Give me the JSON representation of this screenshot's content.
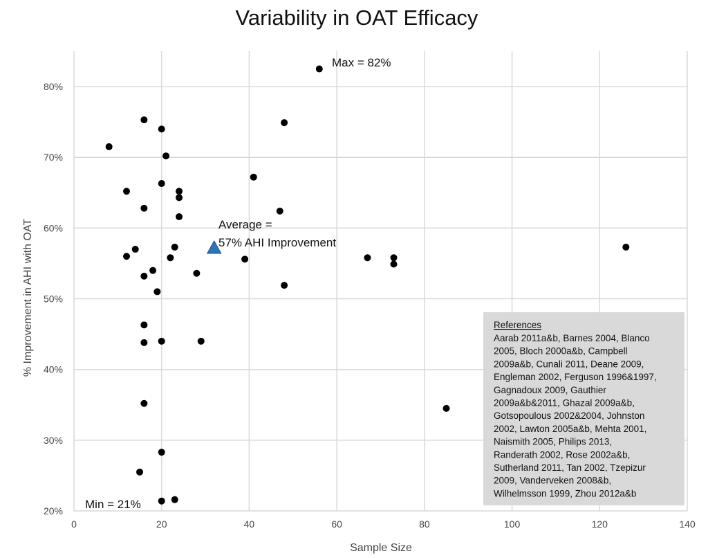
{
  "chart_data": {
    "type": "scatter",
    "title": "Variability in OAT Efficacy",
    "xlabel": "Sample Size",
    "ylabel": "% Improvement in AHI with OAT",
    "xlim": [
      0,
      140
    ],
    "ylim": [
      20,
      85
    ],
    "x_ticks": [
      0,
      20,
      40,
      60,
      80,
      100,
      120,
      140
    ],
    "y_ticks": [
      20,
      30,
      40,
      50,
      60,
      70,
      80
    ],
    "y_tick_suffix": "%",
    "grid": true,
    "colors": {
      "points": "#000000",
      "average": "#2E75B6",
      "reference_box": "#D9D9D9"
    },
    "points": [
      {
        "x": 8,
        "y": 71.5
      },
      {
        "x": 12,
        "y": 65.2
      },
      {
        "x": 12,
        "y": 56.0
      },
      {
        "x": 14,
        "y": 57.0
      },
      {
        "x": 15,
        "y": 25.5
      },
      {
        "x": 16,
        "y": 75.3
      },
      {
        "x": 16,
        "y": 62.8
      },
      {
        "x": 16,
        "y": 53.2
      },
      {
        "x": 16,
        "y": 46.3
      },
      {
        "x": 16,
        "y": 43.8
      },
      {
        "x": 16,
        "y": 35.2
      },
      {
        "x": 18,
        "y": 54.0
      },
      {
        "x": 19,
        "y": 51.0
      },
      {
        "x": 20,
        "y": 74.0
      },
      {
        "x": 20,
        "y": 66.3
      },
      {
        "x": 20,
        "y": 44.0
      },
      {
        "x": 20,
        "y": 28.3
      },
      {
        "x": 20,
        "y": 21.4
      },
      {
        "x": 21,
        "y": 70.2
      },
      {
        "x": 22,
        "y": 55.8
      },
      {
        "x": 23,
        "y": 57.3
      },
      {
        "x": 23,
        "y": 21.6
      },
      {
        "x": 24,
        "y": 65.2
      },
      {
        "x": 24,
        "y": 64.3
      },
      {
        "x": 24,
        "y": 61.6
      },
      {
        "x": 28,
        "y": 53.6
      },
      {
        "x": 29,
        "y": 44.0
      },
      {
        "x": 39,
        "y": 55.6
      },
      {
        "x": 41,
        "y": 67.2
      },
      {
        "x": 47,
        "y": 62.4
      },
      {
        "x": 48,
        "y": 74.9
      },
      {
        "x": 48,
        "y": 51.9
      },
      {
        "x": 56,
        "y": 82.5
      },
      {
        "x": 67,
        "y": 55.8
      },
      {
        "x": 73,
        "y": 55.8
      },
      {
        "x": 73,
        "y": 54.9
      },
      {
        "x": 85,
        "y": 34.5
      },
      {
        "x": 126,
        "y": 57.3
      }
    ],
    "average_point": {
      "x": 32,
      "y": 57.2
    },
    "annotations": {
      "max": "Max = 82%",
      "min": "Min = 21%",
      "average_line1": "Average =",
      "average_line2": "57% AHI Improvement"
    },
    "references": {
      "heading": "References",
      "lines": [
        "Aarab 2011a&b, Barnes 2004, Blanco",
        "2005, Bloch 2000a&b, Campbell",
        "2009a&b, Cunali 2011, Deane 2009,",
        "Engleman 2002, Ferguson 1996&1997,",
        "Gagnadoux 2009, Gauthier",
        "2009a&b&2011, Ghazal 2009a&b,",
        "Gotsopoulous 2002&2004, Johnston",
        "2002, Lawton 2005a&b, Mehta 2001,",
        "Naismith 2005, Philips 2013,",
        "Randerath 2002, Rose 2002a&b,",
        "Sutherland 2011, Tan 2002, Tzepizur",
        "2009, Vanderveken 2008&b,",
        "Wilhelmsson 1999, Zhou 2012a&b"
      ]
    }
  }
}
